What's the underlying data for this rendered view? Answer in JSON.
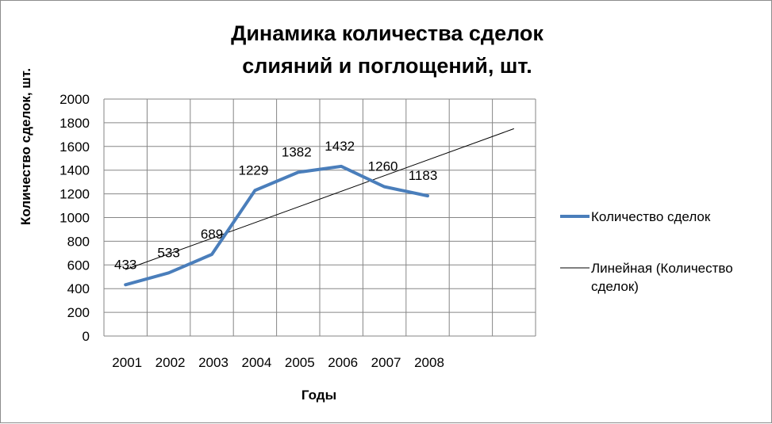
{
  "chart_data": {
    "type": "line",
    "title": [
      "Динамика количества  сделок",
      "слияний и поглощений, шт."
    ],
    "xlabel": "Годы",
    "ylabel": "Количество сделок, шт.",
    "categories": [
      "2001",
      "2002",
      "2003",
      "2004",
      "2005",
      "2006",
      "2007",
      "2008"
    ],
    "ylim": [
      0,
      2000
    ],
    "yticks": [
      0,
      200,
      400,
      600,
      800,
      1000,
      1200,
      1400,
      1600,
      1800,
      2000
    ],
    "grid": true,
    "legend_position": "right",
    "series": [
      {
        "name": "Количество сделок",
        "values": [
          433,
          533,
          689,
          1229,
          1382,
          1432,
          1260,
          1183
        ],
        "data_labels": [
          "433",
          "533",
          "689",
          "1229",
          "1382",
          "1432",
          "1260",
          "1183"
        ],
        "color": "#4a7ebb"
      }
    ],
    "trendline": {
      "name": "Линейная (Количество сделок)",
      "legend_lines": [
        "Линейная (Количество",
        "сделок)"
      ],
      "type": "linear",
      "color": "#000000",
      "start_value": 561,
      "end_value": 1750
    }
  }
}
